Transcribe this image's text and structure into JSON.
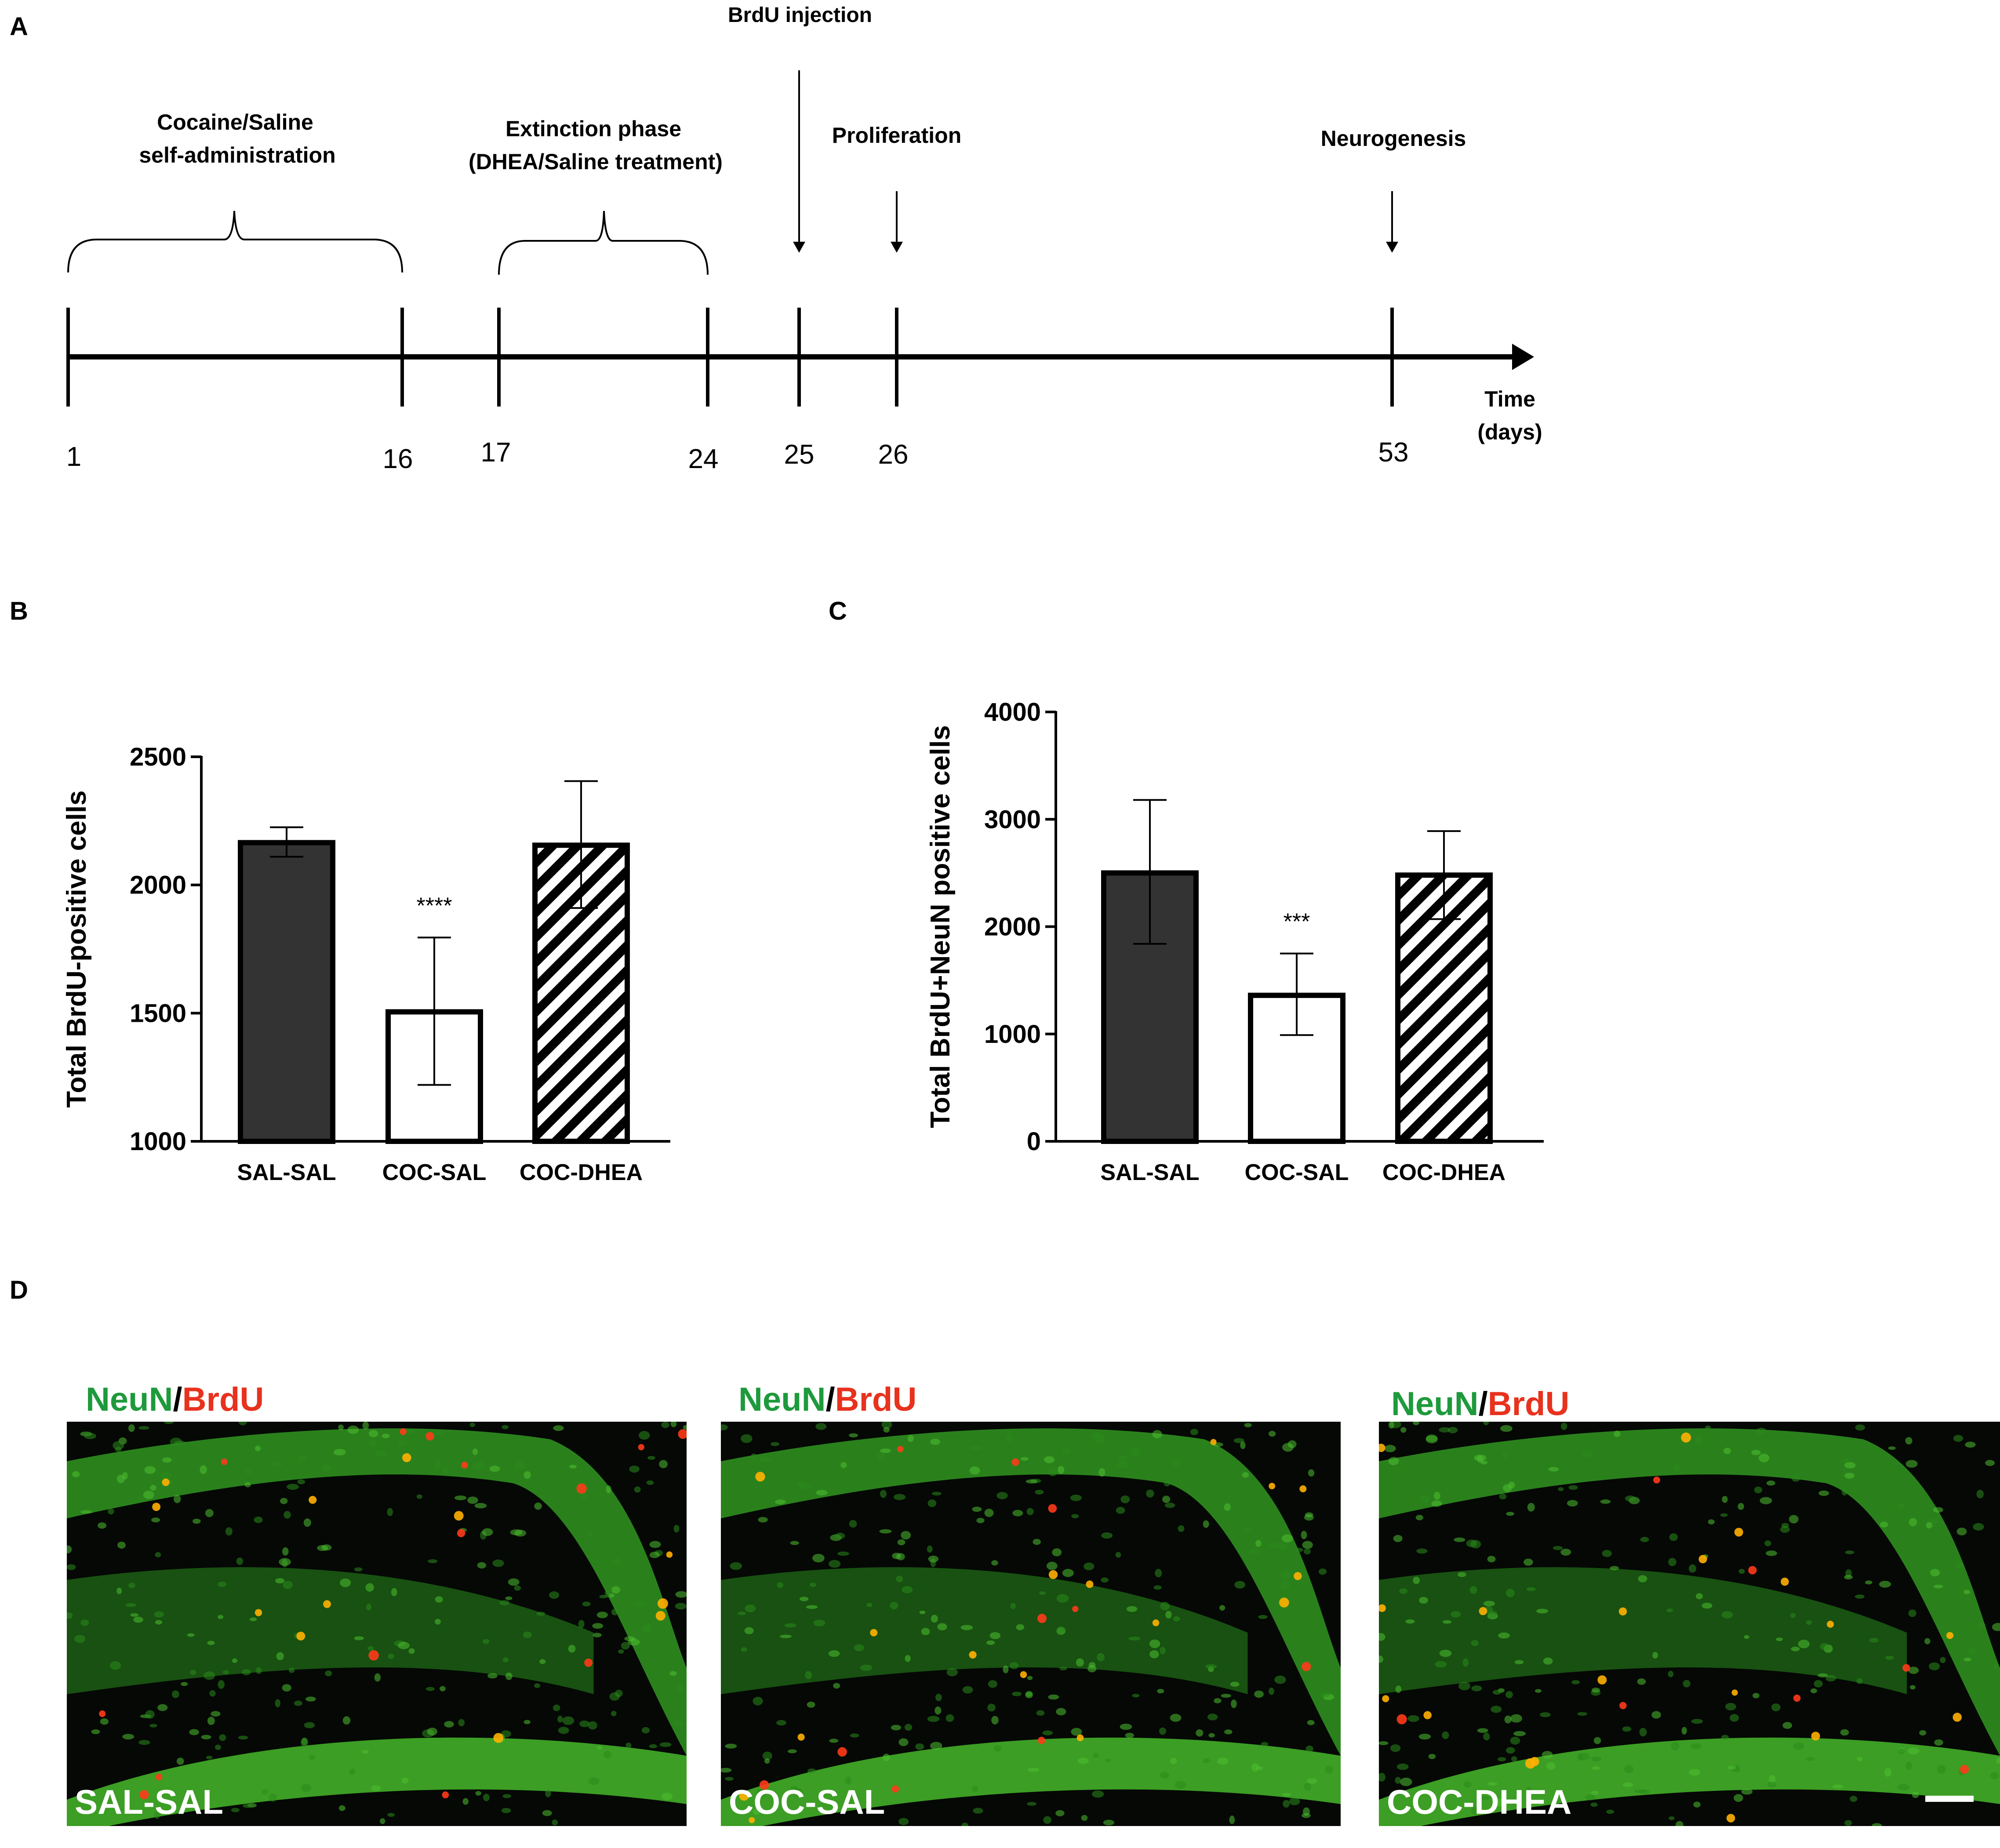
{
  "panel_labels": {
    "a": "A",
    "b": "B",
    "c": "C",
    "d": "D"
  },
  "timeline": {
    "ticks": [
      "1",
      "16",
      "17",
      "24",
      "25",
      "26",
      "53"
    ],
    "axis_label_line1": "Time",
    "axis_label_line2": "(days)",
    "phase1_line1": "Cocaine/Saline",
    "phase1_line2": "self-administration",
    "phase2_line1": "Extinction phase",
    "phase2_line2": "(DHEA/Saline treatment)",
    "brdu": "BrdU injection",
    "proliferation": "Proliferation",
    "neurogenesis": "Neurogenesis"
  },
  "chart_data": [
    {
      "type": "bar",
      "panel": "B",
      "ylabel": "Total BrdU-positive cells",
      "ylim": [
        1000,
        2500
      ],
      "yticks": [
        1000,
        1500,
        2000,
        2500
      ],
      "categories": [
        "SAL-SAL",
        "COC-SAL",
        "COC-DHEA"
      ],
      "values": [
        2165,
        1505,
        2155
      ],
      "error_low": [
        2110,
        1220,
        1910
      ],
      "error_high": [
        2225,
        1795,
        2405
      ],
      "annotations": [
        "",
        "****",
        ""
      ],
      "fills": [
        "dark",
        "white",
        "hatched"
      ]
    },
    {
      "type": "bar",
      "panel": "C",
      "ylabel": "Total BrdU+NeuN positive cells",
      "ylim": [
        0,
        4000
      ],
      "yticks": [
        0,
        1000,
        2000,
        3000,
        4000
      ],
      "categories": [
        "SAL-SAL",
        "COC-SAL",
        "COC-DHEA"
      ],
      "values": [
        2500,
        1360,
        2480
      ],
      "error_low": [
        1840,
        990,
        2070
      ],
      "error_high": [
        3180,
        1750,
        2890
      ],
      "annotations": [
        "",
        "***",
        ""
      ],
      "fills": [
        "dark",
        "white",
        "hatched"
      ]
    }
  ],
  "micrographs": {
    "legend_neun": "NeuN",
    "legend_sep": "/",
    "legend_brdu": "BrdU",
    "panels": [
      "SAL-SAL",
      "COC-SAL",
      "COC-DHEA"
    ]
  },
  "colors": {
    "neun": "#1e9a3c",
    "brdu": "#e8321e",
    "bar_dark": "#333333",
    "ink": "#000000"
  }
}
